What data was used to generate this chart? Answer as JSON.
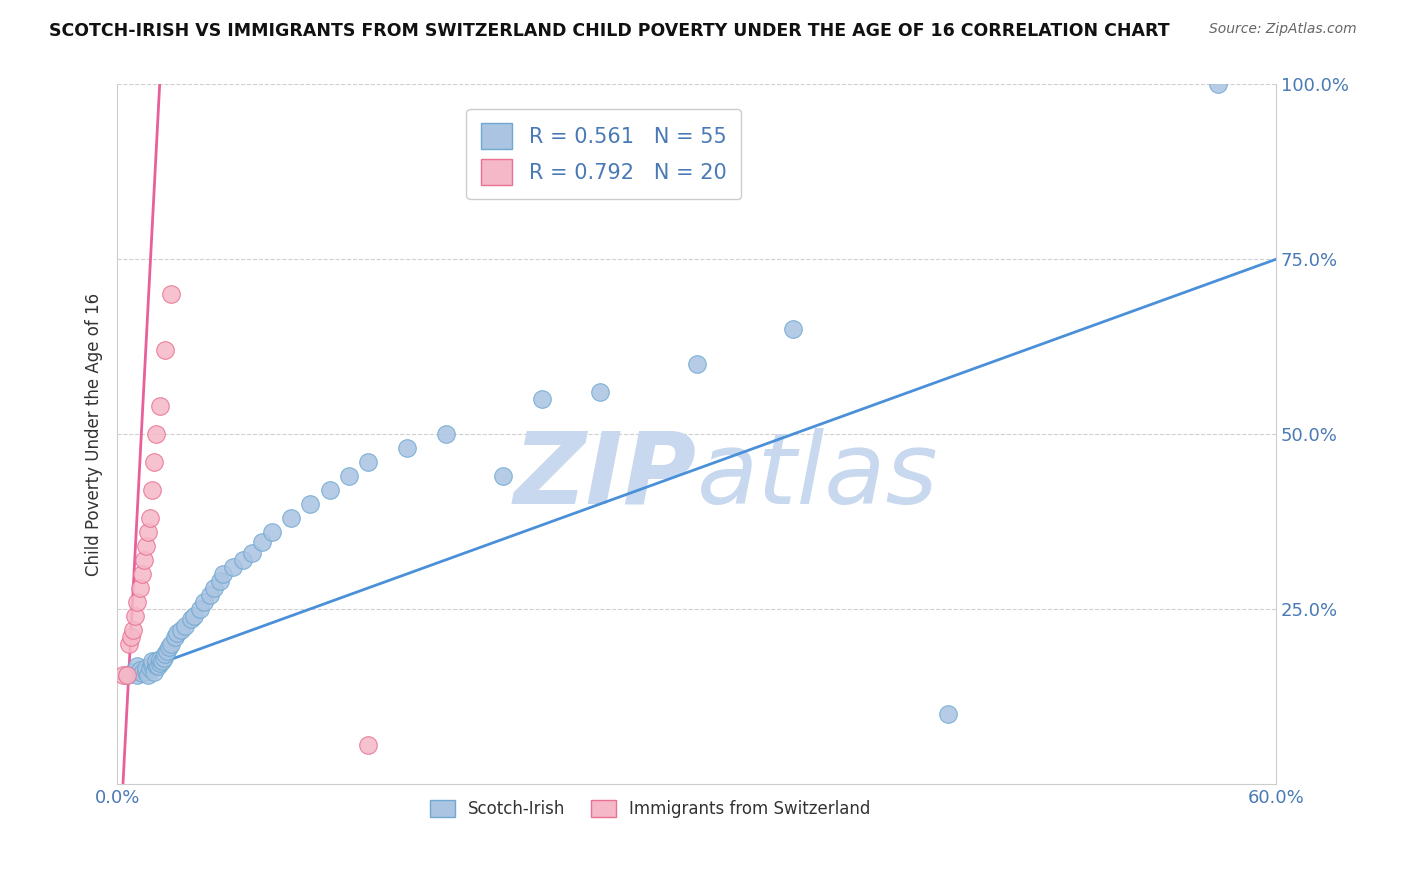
{
  "title": "SCOTCH-IRISH VS IMMIGRANTS FROM SWITZERLAND CHILD POVERTY UNDER THE AGE OF 16 CORRELATION CHART",
  "source": "Source: ZipAtlas.com",
  "ylabel_text": "Child Poverty Under the Age of 16",
  "xlim": [
    0.0,
    0.6
  ],
  "ylim": [
    0.0,
    1.0
  ],
  "xticks": [
    0.0,
    0.1,
    0.2,
    0.3,
    0.4,
    0.5,
    0.6
  ],
  "yticks": [
    0.0,
    0.25,
    0.5,
    0.75,
    1.0
  ],
  "blue_R": 0.561,
  "blue_N": 55,
  "pink_R": 0.792,
  "pink_N": 20,
  "blue_color": "#aac4e2",
  "blue_edge": "#6fa8d0",
  "pink_color": "#f5b8c8",
  "pink_edge": "#e87090",
  "blue_line_color": "#4a90d9",
  "pink_line_color": "#e8609a",
  "watermark_color": "#c8d8ee",
  "legend_label_blue": "Scotch-Irish",
  "legend_label_pink": "Immigrants from Switzerland",
  "blue_scatter_x": [
    0.005,
    0.008,
    0.01,
    0.01,
    0.012,
    0.013,
    0.015,
    0.015,
    0.016,
    0.017,
    0.018,
    0.018,
    0.019,
    0.02,
    0.02,
    0.021,
    0.022,
    0.022,
    0.023,
    0.024,
    0.025,
    0.026,
    0.027,
    0.028,
    0.03,
    0.031,
    0.033,
    0.035,
    0.038,
    0.04,
    0.043,
    0.045,
    0.048,
    0.05,
    0.053,
    0.055,
    0.06,
    0.065,
    0.07,
    0.075,
    0.08,
    0.09,
    0.1,
    0.11,
    0.12,
    0.13,
    0.15,
    0.17,
    0.2,
    0.22,
    0.25,
    0.3,
    0.35,
    0.43,
    0.57
  ],
  "blue_scatter_y": [
    0.155,
    0.16,
    0.155,
    0.168,
    0.162,
    0.158,
    0.16,
    0.165,
    0.155,
    0.165,
    0.17,
    0.175,
    0.16,
    0.17,
    0.175,
    0.168,
    0.172,
    0.178,
    0.175,
    0.18,
    0.185,
    0.19,
    0.195,
    0.2,
    0.21,
    0.215,
    0.22,
    0.225,
    0.235,
    0.24,
    0.25,
    0.26,
    0.27,
    0.28,
    0.29,
    0.3,
    0.31,
    0.32,
    0.33,
    0.345,
    0.36,
    0.38,
    0.4,
    0.42,
    0.44,
    0.46,
    0.48,
    0.5,
    0.44,
    0.55,
    0.56,
    0.6,
    0.65,
    0.1,
    1.0
  ],
  "pink_scatter_x": [
    0.003,
    0.005,
    0.006,
    0.007,
    0.008,
    0.009,
    0.01,
    0.012,
    0.013,
    0.014,
    0.015,
    0.016,
    0.017,
    0.018,
    0.019,
    0.02,
    0.022,
    0.025,
    0.028,
    0.13
  ],
  "pink_scatter_y": [
    0.155,
    0.155,
    0.2,
    0.21,
    0.22,
    0.24,
    0.26,
    0.28,
    0.3,
    0.32,
    0.34,
    0.36,
    0.38,
    0.42,
    0.46,
    0.5,
    0.54,
    0.62,
    0.7,
    0.055
  ],
  "blue_line_x0": 0.0,
  "blue_line_y0": 0.15,
  "blue_line_x1": 0.6,
  "blue_line_y1": 0.75,
  "pink_line_x0": 0.003,
  "pink_line_y0": 0.0,
  "pink_line_x1": 0.022,
  "pink_line_y1": 1.0
}
